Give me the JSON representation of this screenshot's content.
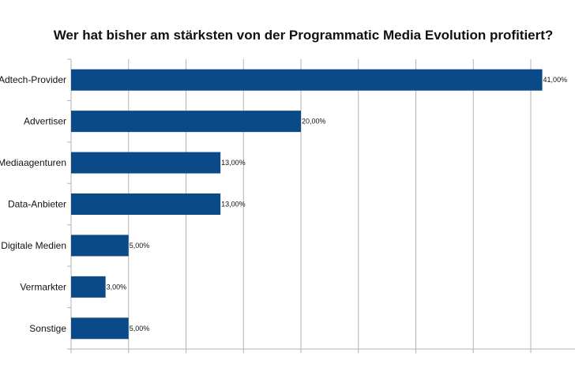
{
  "chart_data": {
    "type": "bar",
    "orientation": "horizontal",
    "title": "Wer hat bisher am stärksten von der Programmatic Media Evolution profitiert?",
    "categories": [
      "Adtech-Provider",
      "Advertiser",
      "Mediaagenturen",
      "Data-Anbieter",
      "Digitale Medien",
      "Vermarkter",
      "Sonstige"
    ],
    "values": [
      41,
      20,
      13,
      13,
      5,
      3,
      5
    ],
    "value_labels": [
      "41,00%",
      "20,00%",
      "13,00%",
      "13,00%",
      "5,00%",
      "3,00%",
      "5,00%"
    ],
    "xlim": [
      0,
      45
    ],
    "major_tick_step": 5,
    "xlabel": "",
    "ylabel": "",
    "grid": true,
    "legend": "none",
    "bar_color": "#0B4A89"
  }
}
